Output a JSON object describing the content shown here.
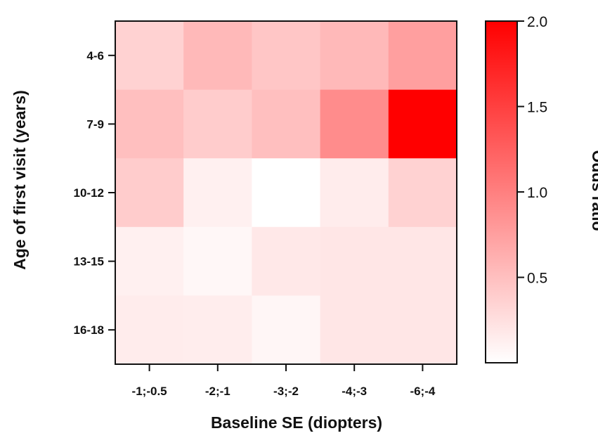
{
  "chart_data": {
    "type": "heatmap",
    "title": "",
    "xlabel": "Baseline SE (diopters)",
    "ylabel": "Age of first visit (years)",
    "x_categories": [
      "-1;-0.5",
      "-2;-1",
      "-3;-2",
      "-4;-3",
      "-6;-4"
    ],
    "y_categories": [
      "4-6",
      "7-9",
      "10-12",
      "13-15",
      "16-18"
    ],
    "values": [
      [
        0.35,
        0.55,
        0.45,
        0.55,
        0.75
      ],
      [
        0.5,
        0.4,
        0.5,
        0.9,
        2.0
      ],
      [
        0.4,
        0.12,
        0.0,
        0.15,
        0.35
      ],
      [
        0.12,
        0.06,
        0.18,
        0.2,
        0.2
      ],
      [
        0.15,
        0.14,
        0.07,
        0.2,
        0.2
      ]
    ],
    "colorbar": {
      "label": "Odds ratio",
      "min": 0,
      "max": 2.0,
      "ticks": [
        0.5,
        1.0,
        1.5,
        2.0
      ],
      "tick_labels": [
        "0.5",
        "1.0",
        "1.5",
        "2.0"
      ],
      "color_low": "#ffffff",
      "color_high": "#ff0000"
    },
    "grid": false,
    "legend": "colorbar-right"
  }
}
